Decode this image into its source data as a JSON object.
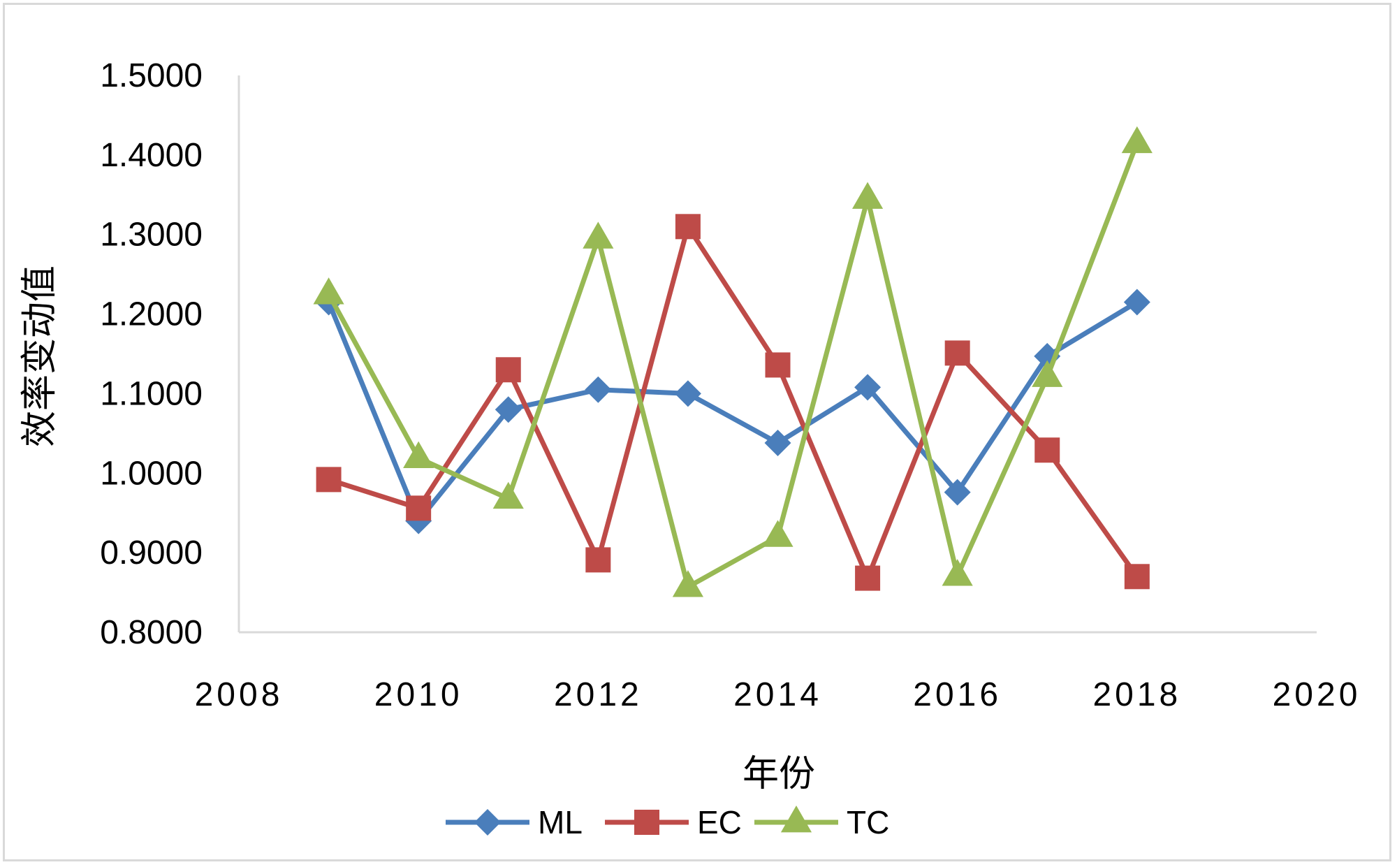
{
  "chart_data": {
    "type": "line",
    "title": "",
    "xlabel": "年份",
    "ylabel": "效率变动值",
    "xlim": [
      2008,
      2020
    ],
    "ylim": [
      0.8,
      1.5
    ],
    "x_ticks": [
      2008,
      2010,
      2012,
      2014,
      2016,
      2018,
      2020
    ],
    "x_tick_labels": [
      "2008",
      "2010",
      "2012",
      "2014",
      "2016",
      "2018",
      "2020"
    ],
    "y_ticks": [
      0.8,
      0.9,
      1.0,
      1.1,
      1.2,
      1.3,
      1.4,
      1.5
    ],
    "y_tick_labels": [
      "0.8000",
      "0.9000",
      "1.0000",
      "1.1000",
      "1.2000",
      "1.3000",
      "1.4000",
      "1.5000"
    ],
    "grid": false,
    "legend_position": "bottom",
    "x": [
      2009,
      2010,
      2011,
      2012,
      2013,
      2014,
      2015,
      2016,
      2017,
      2018
    ],
    "series": [
      {
        "name": "ML",
        "marker": "diamond",
        "color": "#4a7ebb",
        "values": [
          1.215,
          0.94,
          1.08,
          1.105,
          1.1,
          1.038,
          1.108,
          0.976,
          1.147,
          1.215
        ]
      },
      {
        "name": "EC",
        "marker": "square",
        "color": "#be4b48",
        "values": [
          0.992,
          0.956,
          1.13,
          0.891,
          1.31,
          1.136,
          0.868,
          1.151,
          1.029,
          0.87
        ]
      },
      {
        "name": "TC",
        "marker": "triangle",
        "color": "#98b954",
        "values": [
          1.225,
          1.019,
          0.968,
          1.295,
          0.857,
          0.92,
          1.345,
          0.871,
          1.121,
          1.415
        ]
      }
    ]
  }
}
